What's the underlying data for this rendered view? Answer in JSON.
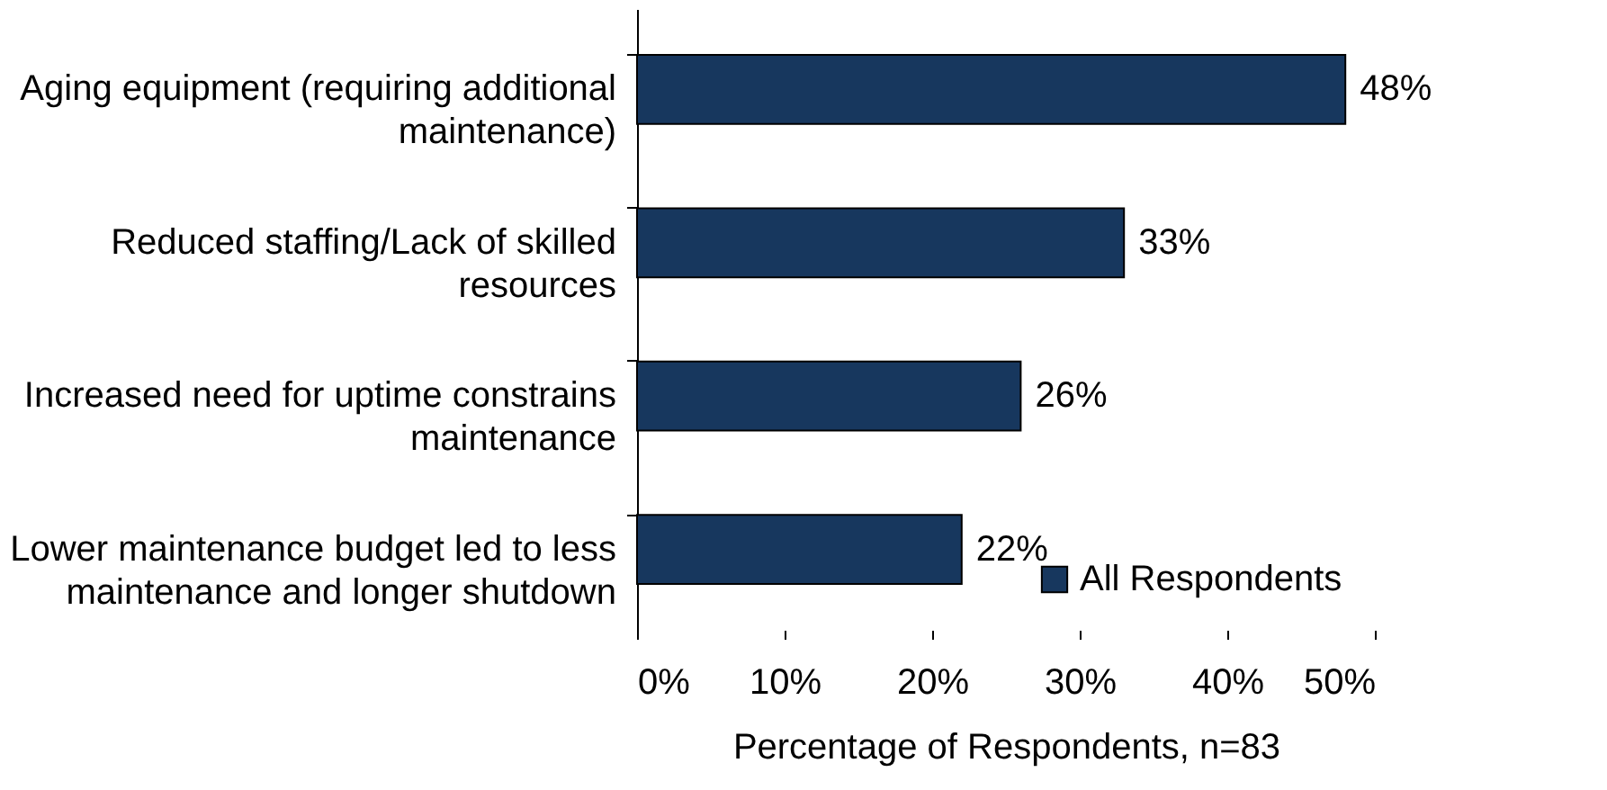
{
  "chart_data": {
    "type": "bar",
    "orientation": "horizontal",
    "xlabel": "Percentage of Respondents, n=83",
    "categories": [
      "Aging equipment (requiring additional maintenance)",
      "Reduced staffing/Lack of skilled resources",
      "Increased need for uptime constrains maintenance",
      "Lower maintenance budget led to less maintenance and longer shutdown"
    ],
    "series": [
      {
        "name": "All Respondents",
        "color": "#17375e",
        "values": [
          48,
          33,
          26,
          22
        ],
        "value_labels": [
          "48%",
          "33%",
          "26%",
          "22%"
        ]
      }
    ],
    "xlim": [
      0,
      50
    ],
    "xticks": [
      {
        "value": 0,
        "label": "0%"
      },
      {
        "value": 10,
        "label": "10%"
      },
      {
        "value": 20,
        "label": "20%"
      },
      {
        "value": 30,
        "label": "30%"
      },
      {
        "value": 40,
        "label": "40%"
      },
      {
        "value": 50,
        "label": "50%"
      }
    ],
    "legend": "bottom right",
    "grid": false
  }
}
